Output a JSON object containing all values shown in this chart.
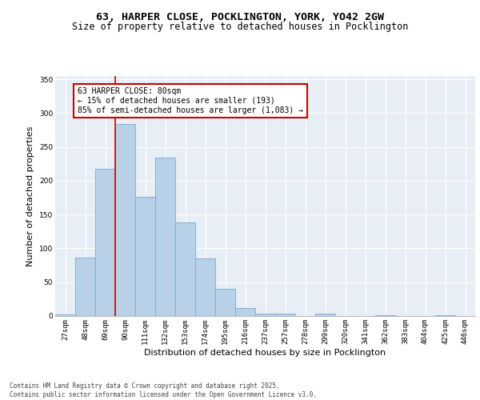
{
  "title_line1": "63, HARPER CLOSE, POCKLINGTON, YORK, YO42 2GW",
  "title_line2": "Size of property relative to detached houses in Pocklington",
  "xlabel": "Distribution of detached houses by size in Pocklington",
  "ylabel": "Number of detached properties",
  "categories": [
    "27sqm",
    "48sqm",
    "69sqm",
    "90sqm",
    "111sqm",
    "132sqm",
    "153sqm",
    "174sqm",
    "195sqm",
    "216sqm",
    "237sqm",
    "257sqm",
    "278sqm",
    "299sqm",
    "320sqm",
    "341sqm",
    "362sqm",
    "383sqm",
    "404sqm",
    "425sqm",
    "446sqm"
  ],
  "values": [
    2,
    86,
    218,
    284,
    176,
    234,
    138,
    85,
    40,
    12,
    4,
    3,
    0,
    3,
    0,
    0,
    1,
    0,
    0,
    1,
    0
  ],
  "bar_color": "#b8d0e8",
  "bar_edge_color": "#7aaad0",
  "vline_x": 2.5,
  "vline_color": "#cc0000",
  "annotation_text": "63 HARPER CLOSE: 80sqm\n← 15% of detached houses are smaller (193)\n85% of semi-detached houses are larger (1,083) →",
  "annotation_box_color": "#cc0000",
  "ylim": [
    0,
    355
  ],
  "yticks": [
    0,
    50,
    100,
    150,
    200,
    250,
    300,
    350
  ],
  "background_color": "#e8eef5",
  "grid_color": "#ffffff",
  "footer_text": "Contains HM Land Registry data © Crown copyright and database right 2025.\nContains public sector information licensed under the Open Government Licence v3.0.",
  "title_fontsize": 9.5,
  "subtitle_fontsize": 8.5,
  "axis_label_fontsize": 8,
  "tick_fontsize": 6.5,
  "annotation_fontsize": 7,
  "footer_fontsize": 5.5
}
